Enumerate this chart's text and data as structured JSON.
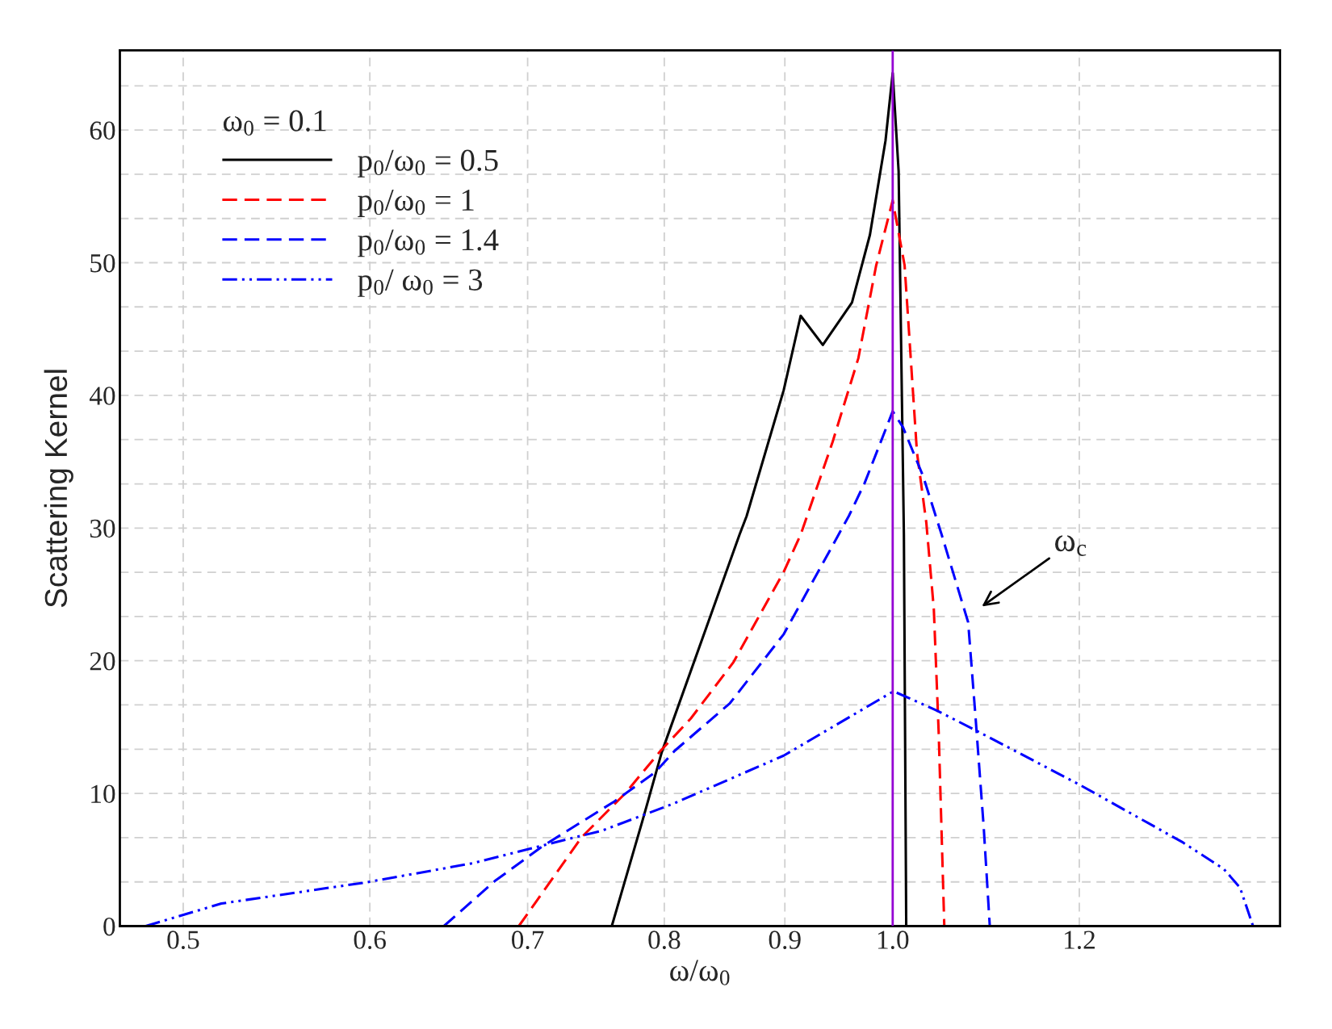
{
  "chart_data": {
    "type": "line",
    "xlabel": "ω/ω$_{0}$",
    "ylabel": "Scattering Kernel",
    "legend_title": "ω$_{0}$ = 0.1",
    "log": "x",
    "xlim": [
      0.47,
      1.46
    ],
    "ylim": [
      0,
      66
    ],
    "xticks": [
      0.5,
      0.6,
      0.7,
      0.8,
      0.9,
      {
        "value": 1.0,
        "label": "1.0"
      },
      1.2
    ],
    "yticks": [
      0,
      {
        "value": 3.33,
        "label": null
      },
      {
        "value": 6.67,
        "label": null
      },
      10,
      {
        "value": 13.33,
        "label": null
      },
      {
        "value": 16.67,
        "label": null
      },
      20,
      {
        "value": 23.33,
        "label": null
      },
      {
        "value": 26.67,
        "label": null
      },
      30,
      {
        "value": 33.33,
        "label": null
      },
      {
        "value": 36.67,
        "label": null
      },
      40,
      {
        "value": 43.33,
        "label": null
      },
      {
        "value": 46.67,
        "label": null
      },
      50,
      {
        "value": 53.33,
        "label": null
      },
      {
        "value": 56.67,
        "label": null
      },
      60,
      {
        "value": 63.33,
        "label": null
      }
    ],
    "grid": true,
    "legend": "top left",
    "series": [
      {
        "name": "p$_{0}$/ω$_{0}$ = 0.5",
        "color": "#000000",
        "line_style": "solid",
        "x": [
          0.76,
          0.783,
          0.798,
          0.861,
          0.867,
          0.899,
          0.914,
          0.934,
          0.961,
          0.978,
          0.993,
          1.0,
          1.0058,
          1.011,
          1.0133
        ],
        "values": [
          0,
          7.9,
          13.1,
          29.5,
          30.9,
          40.4,
          46.0,
          43.8,
          47.0,
          52.1,
          59.2,
          64.3,
          56.9,
          29.5,
          0
        ]
      },
      {
        "name": "p$_{0}$/ω$_{0}$ = 1",
        "color": "#ff0000",
        "line_style": "dashed",
        "x": [
          0.694,
          0.738,
          0.77,
          0.797,
          0.821,
          0.856,
          0.899,
          0.914,
          0.943,
          0.967,
          0.984,
          1.0,
          1.0117,
          1.024,
          1.0334,
          1.041,
          1.046,
          1.0517
        ],
        "values": [
          0,
          6.7,
          10.0,
          13.2,
          15.65,
          19.9,
          26.7,
          29.5,
          36.5,
          42.8,
          49.8,
          54.7,
          49.8,
          35.7,
          30.4,
          23.9,
          14.5,
          0
        ]
      },
      {
        "name": "p$_{0}$/ω$_{0}$ = 1.4",
        "color": "#0000ff",
        "line_style": "dashed",
        "x": [
          0.645,
          0.678,
          0.71,
          0.762,
          0.793,
          0.808,
          0.853,
          0.899,
          0.958,
          0.973,
          1.0,
          1.0101,
          1.0302,
          1.049,
          1.0765,
          1.0844,
          1.093,
          1.0995
        ],
        "values": [
          0,
          3.4,
          6.0,
          9.4,
          11.6,
          13.2,
          16.8,
          22.0,
          30.9,
          33.4,
          38.8,
          37.6,
          33.9,
          29.5,
          22.9,
          15.65,
          7.45,
          0
        ]
      },
      {
        "name": "p$_{0}$/ ω$_{0}$ = 3",
        "color": "#0000ff",
        "line_style": "dashdotdot",
        "x": [
          0.482,
          0.519,
          0.598,
          0.664,
          0.713,
          0.753,
          0.808,
          0.821,
          0.899,
          1.0008,
          1.0426,
          1.086,
          1.199,
          1.328,
          1.382,
          1.404,
          1.422
        ],
        "values": [
          0,
          1.7,
          3.3,
          4.75,
          6.15,
          7.2,
          9.26,
          9.8,
          12.85,
          17.7,
          16.3,
          14.7,
          10.7,
          6.3,
          4.3,
          2.9,
          0
        ]
      }
    ],
    "ref_lines": [
      {
        "axis": "x",
        "value": 1.0,
        "color": "#9400d3",
        "line_style": "solid"
      }
    ],
    "annotations": [
      "ω$_{c}$"
    ]
  }
}
